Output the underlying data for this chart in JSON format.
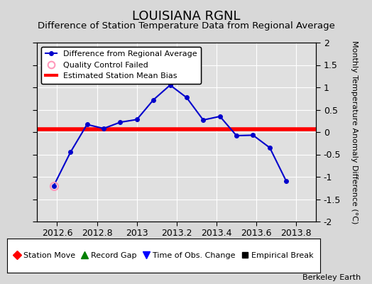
{
  "title": "LOUISIANA RGNL",
  "subtitle": "Difference of Station Temperature Data from Regional Average",
  "ylabel_right": "Monthly Temperature Anomaly Difference (°C)",
  "watermark": "Berkeley Earth",
  "xlim": [
    2012.5,
    2013.9
  ],
  "ylim": [
    -2,
    2
  ],
  "xticks": [
    2012.6,
    2012.8,
    2013.0,
    2013.2,
    2013.4,
    2013.6,
    2013.8
  ],
  "xtick_labels": [
    "2012.6",
    "2012.8",
    "2013",
    "2013.2",
    "2013.4",
    "2013.6",
    "2013.8"
  ],
  "yticks": [
    -2,
    -1.5,
    -1,
    -0.5,
    0,
    0.5,
    1,
    1.5,
    2
  ],
  "line_x": [
    2012.583,
    2012.667,
    2012.75,
    2012.833,
    2012.917,
    2013.0,
    2013.083,
    2013.167,
    2013.25,
    2013.333,
    2013.417,
    2013.5,
    2013.583,
    2013.667,
    2013.75
  ],
  "line_y": [
    -1.2,
    -0.45,
    0.17,
    0.08,
    0.22,
    0.28,
    0.72,
    1.05,
    0.77,
    0.27,
    0.35,
    -0.08,
    -0.07,
    -0.35,
    -1.1
  ],
  "qc_failed_x": [
    2012.583
  ],
  "qc_failed_y": [
    -1.2
  ],
  "bias_y": 0.07,
  "line_color": "#0000cc",
  "bias_color": "#ff0000",
  "bias_linewidth": 4,
  "qc_color": "#ff99bb",
  "plot_bg": "#e0e0e0",
  "fig_bg": "#d8d8d8",
  "grid_color": "#ffffff",
  "title_fontsize": 13,
  "subtitle_fontsize": 9.5,
  "legend1_labels": [
    "Difference from Regional Average",
    "Quality Control Failed",
    "Estimated Station Mean Bias"
  ],
  "legend2_labels": [
    "Station Move",
    "Record Gap",
    "Time of Obs. Change",
    "Empirical Break"
  ]
}
